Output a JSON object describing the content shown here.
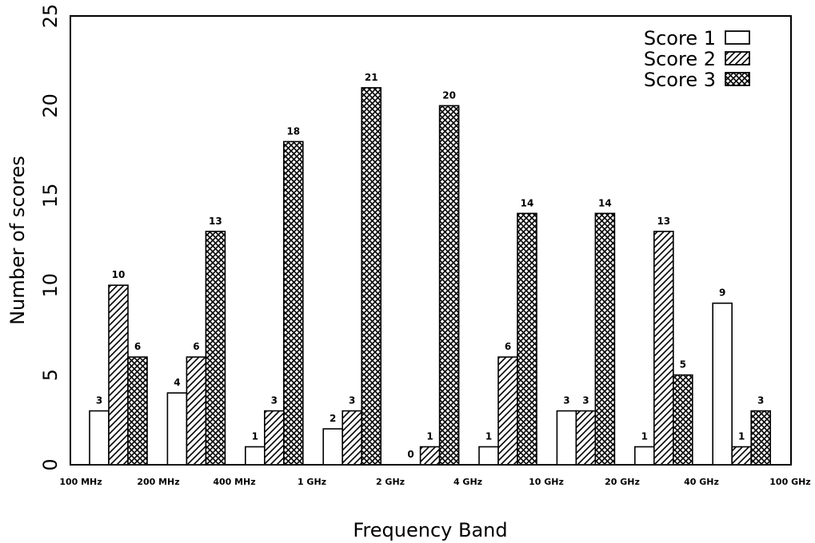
{
  "chart_data": {
    "type": "bar",
    "xlabel": "Frequency Band",
    "ylabel": "Number of scores",
    "ylim": [
      0,
      25
    ],
    "yticks": [
      "0",
      "5",
      "10",
      "15",
      "20",
      "25"
    ],
    "band_edges": [
      "100 MHz",
      "200 MHz",
      "400 MHz",
      "1 GHz",
      "2 GHz",
      "4 GHz",
      "10 GHz",
      "20 GHz",
      "40 GHz",
      "100 GHz"
    ],
    "categories": [
      "100 MHz - 200 MHz",
      "200 MHz - 400 MHz",
      "400 MHz - 1 GHz",
      "1 GHz - 2 GHz",
      "2 GHz - 4 GHz",
      "4 GHz - 10 GHz",
      "10 GHz - 20 GHz",
      "20 GHz - 40 GHz",
      "40 GHz - 100 GHz"
    ],
    "series": [
      {
        "name": "Score 1",
        "pattern": "empty",
        "values": [
          3,
          4,
          1,
          2,
          0,
          1,
          3,
          1,
          9
        ]
      },
      {
        "name": "Score 2",
        "pattern": "diagonal-hatch",
        "values": [
          10,
          6,
          3,
          3,
          1,
          6,
          3,
          13,
          1
        ]
      },
      {
        "name": "Score 3",
        "pattern": "cross-hatch",
        "values": [
          6,
          13,
          18,
          21,
          20,
          14,
          14,
          5,
          3
        ]
      }
    ],
    "data_labels": [
      [
        "3",
        "4",
        "1",
        "2",
        "0",
        "1",
        "3",
        "1",
        "9"
      ],
      [
        "10",
        "6",
        "3",
        "3",
        "1",
        "6",
        "3",
        "13",
        "1"
      ],
      [
        "6",
        "13",
        "18",
        "21",
        "20",
        "14",
        "14",
        "5",
        "3"
      ]
    ],
    "legend": {
      "placement": "top-right",
      "entries": [
        "Score 1",
        "Score 2",
        "Score 3"
      ]
    },
    "grid": false,
    "colors": {
      "stroke": "#000000",
      "fill": "#ffffff"
    }
  }
}
